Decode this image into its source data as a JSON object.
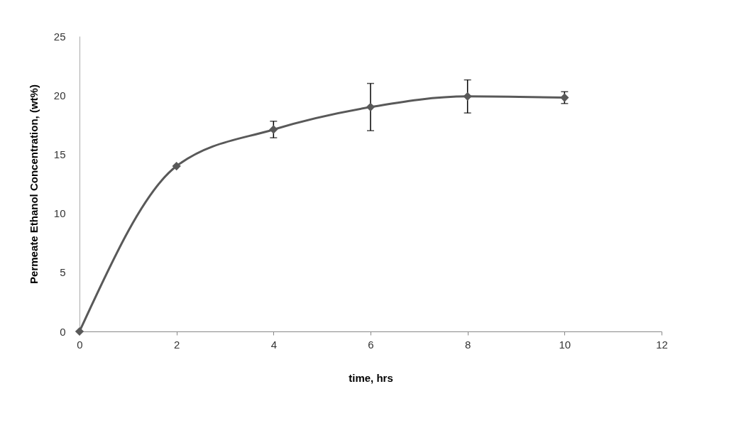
{
  "chart_data": {
    "type": "line",
    "xlabel": "time, hrs",
    "ylabel": "Permeate Ethanol Concentration, (wt%)",
    "x": [
      0,
      2,
      4,
      6,
      8,
      10
    ],
    "series": [
      {
        "color": "#595959",
        "values": [
          0,
          14,
          17.1,
          19,
          19.9,
          19.8
        ],
        "errors": [
          null,
          null,
          0.7,
          2,
          1.4,
          0.5
        ]
      }
    ],
    "xlim": [
      0,
      12
    ],
    "xticks": [
      0,
      2,
      4,
      6,
      8,
      10,
      12
    ],
    "ylim": [
      0,
      25
    ],
    "yticks": [
      0,
      5,
      10,
      15,
      20,
      25
    ],
    "grid": false,
    "marker": "diamond",
    "line_style": "solid"
  }
}
